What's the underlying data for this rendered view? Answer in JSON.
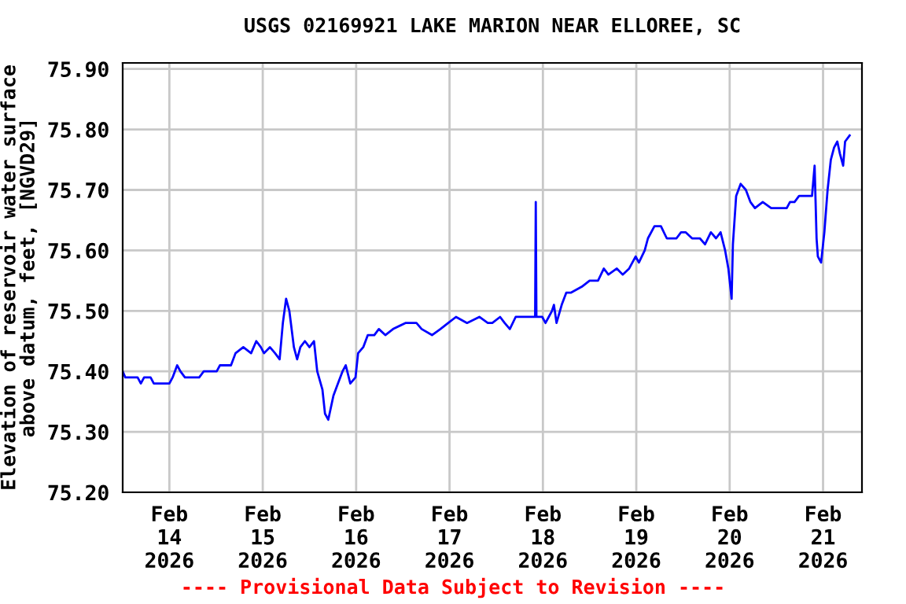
{
  "chart_data": {
    "type": "line",
    "title": "USGS 02169921 LAKE MARION NEAR ELLOREE, SC",
    "ylabel": "Elevation of reservoir water surface\nabove datum, feet, [NGVD29]",
    "annotations": [
      "---- Provisional Data Subject to Revision ----"
    ],
    "x": [
      "2026-02-13T12:00",
      "2026-02-13T12:40",
      "2026-02-13T15:50",
      "2026-02-13T16:40",
      "2026-02-13T17:30",
      "2026-02-13T19:10",
      "2026-02-13T20:00",
      "2026-02-14T00:00",
      "2026-02-14T00:50",
      "2026-02-14T02:00",
      "2026-02-14T02:50",
      "2026-02-14T04:00",
      "2026-02-14T07:40",
      "2026-02-14T08:50",
      "2026-02-14T12:10",
      "2026-02-14T13:00",
      "2026-02-14T15:50",
      "2026-02-14T17:00",
      "2026-02-14T19:00",
      "2026-02-14T21:00",
      "2026-02-14T22:20",
      "2026-02-14T23:30",
      "2026-02-15T00:20",
      "2026-02-15T01:50",
      "2026-02-15T03:10",
      "2026-02-15T04:20",
      "2026-02-15T05:10",
      "2026-02-15T06:00",
      "2026-02-15T06:50",
      "2026-02-15T08:00",
      "2026-02-15T08:50",
      "2026-02-15T09:40",
      "2026-02-15T10:50",
      "2026-02-15T12:00",
      "2026-02-15T13:10",
      "2026-02-15T14:00",
      "2026-02-15T15:20",
      "2026-02-15T16:00",
      "2026-02-15T16:50",
      "2026-02-15T18:10",
      "2026-02-15T19:20",
      "2026-02-15T20:30",
      "2026-02-15T21:20",
      "2026-02-15T22:30",
      "2026-02-15T23:50",
      "2026-02-16T00:30",
      "2026-02-16T01:50",
      "2026-02-16T03:00",
      "2026-02-16T04:40",
      "2026-02-16T05:50",
      "2026-02-16T07:30",
      "2026-02-16T09:30",
      "2026-02-16T12:40",
      "2026-02-16T15:30",
      "2026-02-16T16:50",
      "2026-02-16T19:30",
      "2026-02-16T21:40",
      "2026-02-16T23:40",
      "2026-02-17T01:40",
      "2026-02-17T04:30",
      "2026-02-17T07:40",
      "2026-02-17T09:50",
      "2026-02-17T11:00",
      "2026-02-17T13:00",
      "2026-02-17T14:10",
      "2026-02-17T15:30",
      "2026-02-17T17:00",
      "2026-02-17T19:50",
      "2026-02-17T22:00",
      "2026-02-17T22:10",
      "2026-02-17T22:20",
      "2026-02-17T23:50",
      "2026-02-18T00:40",
      "2026-02-18T01:30",
      "2026-02-18T02:20",
      "2026-02-18T02:50",
      "2026-02-18T03:30",
      "2026-02-18T04:50",
      "2026-02-18T06:00",
      "2026-02-18T07:10",
      "2026-02-18T10:00",
      "2026-02-18T12:00",
      "2026-02-18T14:10",
      "2026-02-18T15:40",
      "2026-02-18T16:50",
      "2026-02-18T19:00",
      "2026-02-18T20:30",
      "2026-02-18T22:10",
      "2026-02-18T23:50",
      "2026-02-19T00:40",
      "2026-02-19T02:10",
      "2026-02-19T03:00",
      "2026-02-19T04:40",
      "2026-02-19T06:20",
      "2026-02-19T07:50",
      "2026-02-19T10:20",
      "2026-02-19T11:30",
      "2026-02-19T12:40",
      "2026-02-19T14:20",
      "2026-02-19T16:20",
      "2026-02-19T17:40",
      "2026-02-19T19:10",
      "2026-02-19T20:30",
      "2026-02-19T21:40",
      "2026-02-19T22:50",
      "2026-02-19T23:40",
      "2026-02-20T00:30",
      "2026-02-20T00:50",
      "2026-02-20T01:40",
      "2026-02-20T02:50",
      "2026-02-20T04:10",
      "2026-02-20T05:20",
      "2026-02-20T06:30",
      "2026-02-20T08:30",
      "2026-02-20T10:40",
      "2026-02-20T14:40",
      "2026-02-20T15:30",
      "2026-02-20T16:40",
      "2026-02-20T17:50",
      "2026-02-20T21:10",
      "2026-02-20T21:50",
      "2026-02-20T22:20",
      "2026-02-20T22:40",
      "2026-02-20T23:30",
      "2026-02-21T00:20",
      "2026-02-21T01:10",
      "2026-02-21T02:00",
      "2026-02-21T02:50",
      "2026-02-21T03:40",
      "2026-02-21T04:20",
      "2026-02-21T05:10",
      "2026-02-21T05:40",
      "2026-02-21T06:50"
    ],
    "series": [
      {
        "color": "#0000ff",
        "values": [
          75.4,
          75.39,
          75.39,
          75.38,
          75.39,
          75.39,
          75.38,
          75.38,
          75.39,
          75.41,
          75.4,
          75.39,
          75.39,
          75.4,
          75.4,
          75.41,
          75.41,
          75.43,
          75.44,
          75.43,
          75.45,
          75.44,
          75.43,
          75.44,
          75.43,
          75.42,
          75.48,
          75.52,
          75.5,
          75.44,
          75.42,
          75.44,
          75.45,
          75.44,
          75.45,
          75.4,
          75.37,
          75.33,
          75.32,
          75.36,
          75.38,
          75.4,
          75.41,
          75.38,
          75.39,
          75.43,
          75.44,
          75.46,
          75.46,
          75.47,
          75.46,
          75.47,
          75.48,
          75.48,
          75.47,
          75.46,
          75.47,
          75.48,
          75.49,
          75.48,
          75.49,
          75.48,
          75.48,
          75.49,
          75.48,
          75.47,
          75.49,
          75.49,
          75.49,
          75.68,
          75.49,
          75.49,
          75.48,
          75.49,
          75.5,
          75.51,
          75.48,
          75.51,
          75.53,
          75.53,
          75.54,
          75.55,
          75.55,
          75.57,
          75.56,
          75.57,
          75.56,
          75.57,
          75.59,
          75.58,
          75.6,
          75.62,
          75.64,
          75.64,
          75.62,
          75.62,
          75.63,
          75.63,
          75.62,
          75.62,
          75.61,
          75.63,
          75.62,
          75.63,
          75.6,
          75.57,
          75.52,
          75.61,
          75.69,
          75.71,
          75.7,
          75.68,
          75.67,
          75.68,
          75.67,
          75.67,
          75.68,
          75.68,
          75.69,
          75.69,
          75.74,
          75.62,
          75.59,
          75.58,
          75.63,
          75.7,
          75.75,
          75.77,
          75.78,
          75.76,
          75.74,
          75.78,
          75.79
        ]
      }
    ],
    "xlim": [
      "2026-02-13T12:00",
      "2026-02-21T10:00"
    ],
    "xticks": [
      {
        "value": "2026-02-14",
        "label": "Feb\n14\n2026"
      },
      {
        "value": "2026-02-15",
        "label": "Feb\n15\n2026"
      },
      {
        "value": "2026-02-16",
        "label": "Feb\n16\n2026"
      },
      {
        "value": "2026-02-17",
        "label": "Feb\n17\n2026"
      },
      {
        "value": "2026-02-18",
        "label": "Feb\n18\n2026"
      },
      {
        "value": "2026-02-19",
        "label": "Feb\n19\n2026"
      },
      {
        "value": "2026-02-20",
        "label": "Feb\n20\n2026"
      },
      {
        "value": "2026-02-21",
        "label": "Feb\n21\n2026"
      }
    ],
    "ylim": [
      75.2,
      75.91
    ],
    "yticks": [
      {
        "value": 75.2,
        "label": "75.20"
      },
      {
        "value": 75.3,
        "label": "75.30"
      },
      {
        "value": 75.4,
        "label": "75.40"
      },
      {
        "value": 75.5,
        "label": "75.50"
      },
      {
        "value": 75.6,
        "label": "75.60"
      },
      {
        "value": 75.7,
        "label": "75.70"
      },
      {
        "value": 75.8,
        "label": "75.80"
      },
      {
        "value": 75.9,
        "label": "75.90"
      }
    ],
    "grid": true,
    "legend": false,
    "line_style": "solid",
    "marker": "none"
  }
}
